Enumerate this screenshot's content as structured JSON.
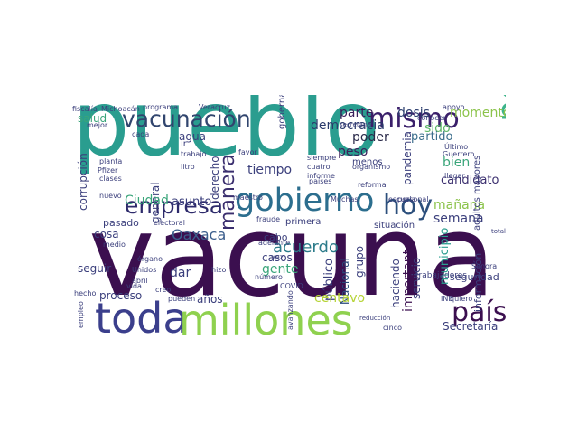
{
  "words": [
    {
      "text": "pueblo",
      "color": "#2a9d8f"
    },
    {
      "text": "vacuna",
      "color": "#3b0f4f"
    },
    {
      "text": "toda",
      "color": "#3b3f8c"
    },
    {
      "text": "millones",
      "color": "#8fd14f"
    },
    {
      "text": "gobierno",
      "color": "#2c6e8e"
    },
    {
      "text": "empresa",
      "color": "#2d2a6b"
    },
    {
      "text": "vacunación",
      "color": "#31456e"
    },
    {
      "text": "mismo",
      "color": "#3a1f6a"
    },
    {
      "text": "hoy",
      "color": "#2c4f7c"
    },
    {
      "text": "persona",
      "color": "#3cb48a"
    },
    {
      "text": "país",
      "color": "#3b0f4f"
    },
    {
      "text": "manera",
      "color": "#3a2e6e"
    },
    {
      "text": "acuerdo",
      "color": "#2c7b8a"
    },
    {
      "text": "Oaxaca",
      "color": "#3b5e8c"
    },
    {
      "text": "democracia",
      "color": "#2a3a6b"
    },
    {
      "text": "parte",
      "color": "#3a1f5a"
    },
    {
      "text": "dosis",
      "color": "#2c3e6e"
    },
    {
      "text": "momento",
      "color": "#8bc34a"
    },
    {
      "text": "peso",
      "color": "#3a1f5a"
    },
    {
      "text": "poder",
      "color": "#2a2a4a"
    },
    {
      "text": "sido",
      "color": "#5fb86a"
    },
    {
      "text": "bien",
      "color": "#3aa57a"
    },
    {
      "text": "pandemia",
      "color": "#3b3f7c"
    },
    {
      "text": "partido",
      "color": "#3b6e8c"
    },
    {
      "text": "mañana",
      "color": "#8bc34a"
    },
    {
      "text": "candidato",
      "color": "#3a2e6e"
    },
    {
      "text": "semana",
      "color": "#3b3f7c"
    },
    {
      "text": "municipio",
      "color": "#2a9d8f"
    },
    {
      "text": "importante",
      "color": "#3b0f4f"
    },
    {
      "text": "servicio",
      "color": "#3b3f7c"
    },
    {
      "text": "haciendo",
      "color": "#3b3f7c"
    },
    {
      "text": "Nacional",
      "color": "#2a4a7c"
    },
    {
      "text": "público",
      "color": "#3b3f7c"
    },
    {
      "text": "grupo",
      "color": "#3b3f7c"
    },
    {
      "text": "centavo",
      "color": "#b5d334"
    },
    {
      "text": "tiempo",
      "color": "#3b3f7c"
    },
    {
      "text": "gente",
      "color": "#3aa57a"
    },
    {
      "text": "casos",
      "color": "#3b3f7c"
    },
    {
      "text": "derecho",
      "color": "#3b3f7c"
    },
    {
      "text": "general",
      "color": "#3b3f7c"
    },
    {
      "text": "Ciudad",
      "color": "#3aa57a"
    },
    {
      "text": "asunto",
      "color": "#3b3f7c"
    },
    {
      "text": "agua",
      "color": "#3b3f7c"
    },
    {
      "text": "salud",
      "color": "#3aa57a"
    },
    {
      "text": "proceso",
      "color": "#3b3f7c"
    },
    {
      "text": "años",
      "color": "#3b3f7c"
    },
    {
      "text": "dar",
      "color": "#3b3f7c"
    },
    {
      "text": "seguir",
      "color": "#3b3f7c"
    },
    {
      "text": "corrupción",
      "color": "#3b3f7c"
    },
    {
      "text": "cosa",
      "color": "#3b3f7c"
    },
    {
      "text": "pasado",
      "color": "#3b3f7c"
    },
    {
      "text": "Secretaría",
      "color": "#3b3f7c"
    },
    {
      "text": "información",
      "color": "#3b3f7c"
    },
    {
      "text": "adultos mayores",
      "color": "#3b3f7c"
    },
    {
      "text": "seguridad",
      "color": "#3b3f7c"
    },
    {
      "text": "menos",
      "color": "#3b3f7c"
    },
    {
      "text": "cabo",
      "color": "#3b3f7c"
    },
    {
      "text": "gobernador",
      "color": "#3b3f7c"
    },
    {
      "text": "situación",
      "color": "#3b3f7c"
    },
    {
      "text": "primera",
      "color": "#3b3f7c"
    },
    {
      "text": "trabajadores",
      "color": "#3b3f7c"
    },
    {
      "text": "Veracruz",
      "color": "#3b3f7c"
    },
    {
      "text": "fiscalía",
      "color": "#3b3f7c"
    },
    {
      "text": "Michoacán",
      "color": "#3b3f7c"
    },
    {
      "text": "programa",
      "color": "#3b3f7c"
    },
    {
      "text": "planta",
      "color": "#3b3f7c"
    },
    {
      "text": "Pfizer",
      "color": "#3b3f7c"
    },
    {
      "text": "clases",
      "color": "#3b3f7c"
    },
    {
      "text": "trabajo",
      "color": "#3b3f7c"
    },
    {
      "text": "litro",
      "color": "#3b3f7c"
    },
    {
      "text": "favor",
      "color": "#3b3f7c"
    },
    {
      "text": "siempre",
      "color": "#3b3f7c"
    },
    {
      "text": "cuatro",
      "color": "#3b3f7c"
    },
    {
      "text": "informe",
      "color": "#3b3f7c"
    },
    {
      "text": "reforma",
      "color": "#3b3f7c"
    },
    {
      "text": "organismo",
      "color": "#3b3f7c"
    },
    {
      "text": "Muchas",
      "color": "#3b3f7c"
    },
    {
      "text": "personal",
      "color": "#3b3f7c"
    },
    {
      "text": "quiero",
      "color": "#3b3f7c"
    },
    {
      "text": "electoral",
      "color": "#3b3f7c"
    },
    {
      "text": "Unidos",
      "color": "#3b3f7c"
    },
    {
      "text": "abril",
      "color": "#3b3f7c"
    },
    {
      "text": "creo",
      "color": "#3b3f7c"
    },
    {
      "text": "pueden",
      "color": "#3b3f7c"
    },
    {
      "text": "hizo",
      "color": "#3b3f7c"
    },
    {
      "text": "vez",
      "color": "#3b3f7c"
    },
    {
      "text": "adelante",
      "color": "#3b3f7c"
    },
    {
      "text": "número",
      "color": "#3b3f7c"
    },
    {
      "text": "avanzando",
      "color": "#3b3f7c"
    },
    {
      "text": "empleo",
      "color": "#3b3f7c"
    },
    {
      "text": "hecho",
      "color": "#3b3f7c"
    },
    {
      "text": "medio",
      "color": "#3b3f7c"
    },
    {
      "text": "vida",
      "color": "#3b3f7c"
    },
    {
      "text": "órgano",
      "color": "#3b3f7c"
    },
    {
      "text": "INE",
      "color": "#3b3f7c"
    },
    {
      "text": "Sonora",
      "color": "#3b3f7c"
    },
    {
      "text": "mejor",
      "color": "#3b3f7c"
    },
    {
      "text": "cada",
      "color": "#3b3f7c"
    },
    {
      "text": "ir",
      "color": "#3b3f7c"
    },
    {
      "text": "nuevo",
      "color": "#3b3f7c"
    },
    {
      "text": "maestro",
      "color": "#3b3f7c"
    },
    {
      "text": "fraude",
      "color": "#3b3f7c"
    },
    {
      "text": "COVID",
      "color": "#3b3f7c"
    },
    {
      "text": "escuela",
      "color": "#3b3f7c"
    },
    {
      "text": "conocer",
      "color": "#3b3f7c"
    },
    {
      "text": "apoyo",
      "color": "#3b3f7c"
    },
    {
      "text": "llegar",
      "color": "#3b3f7c"
    },
    {
      "text": "Último",
      "color": "#3b3f7c"
    },
    {
      "text": "Guerrero",
      "color": "#3b3f7c"
    },
    {
      "text": "países",
      "color": "#3b3f7c"
    },
    {
      "text": "secretaria",
      "color": "#3b3f7c"
    },
    {
      "text": "cinco",
      "color": "#3b3f7c"
    },
    {
      "text": "reducción",
      "color": "#3b3f7c"
    },
    {
      "text": "total",
      "color": "#3b3f7c"
    }
  ]
}
